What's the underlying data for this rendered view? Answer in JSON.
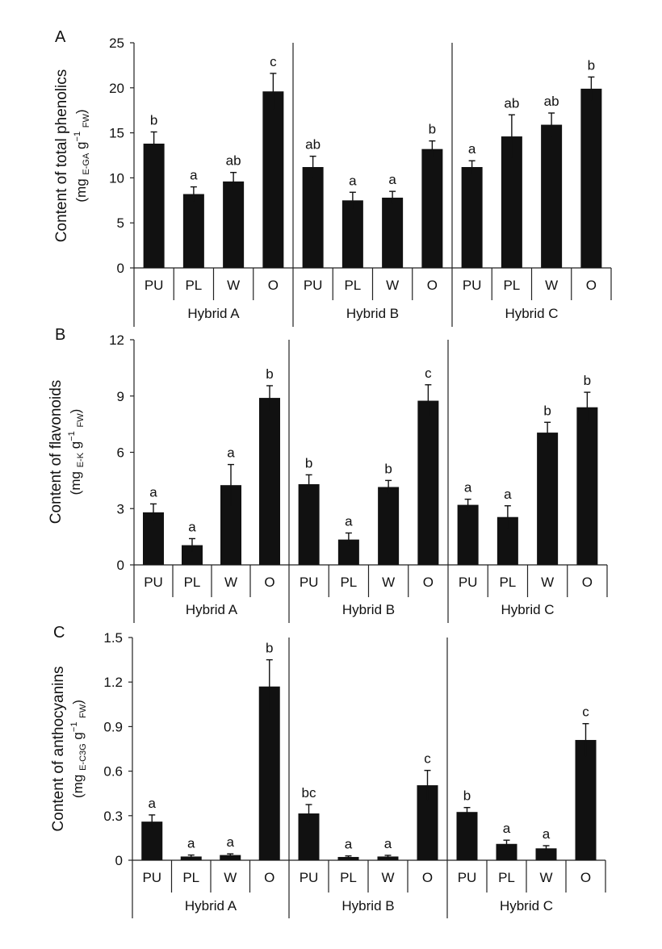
{
  "figure_colors": {
    "bar": "#111111",
    "axis": "#222222",
    "background": "#ffffff"
  },
  "chart_data": [
    {
      "panel_label": "A",
      "type": "bar",
      "ylabel": "Content of total phenolics",
      "ylabel_unit_main": "mg",
      "ylabel_unit_sub1": "E-GA",
      "ylabel_unit_g": "g",
      "ylabel_unit_sup": "−1",
      "ylabel_unit_sub2": "FW",
      "ylim": [
        0,
        25
      ],
      "yticks": [
        0,
        5,
        10,
        15,
        20,
        25
      ],
      "ytick_labels": [
        "0",
        "5",
        "10",
        "15",
        "20",
        "25"
      ],
      "groups": [
        "Hybrid A",
        "Hybrid B",
        "Hybrid C"
      ],
      "categories": [
        "PU",
        "PL",
        "W",
        "O"
      ],
      "values": [
        [
          13.8,
          8.2,
          9.6,
          19.6
        ],
        [
          11.2,
          7.5,
          7.8,
          13.2
        ],
        [
          11.2,
          14.6,
          15.9,
          19.9
        ]
      ],
      "errors": [
        [
          1.3,
          0.8,
          1.0,
          2.0
        ],
        [
          1.2,
          0.9,
          0.7,
          0.9
        ],
        [
          0.7,
          2.4,
          1.3,
          1.3
        ]
      ],
      "letters": [
        [
          "b",
          "a",
          "ab",
          "c"
        ],
        [
          "ab",
          "a",
          "a",
          "b"
        ],
        [
          "a",
          "ab",
          "ab",
          "b"
        ]
      ],
      "grid": false
    },
    {
      "panel_label": "B",
      "type": "bar",
      "ylabel": "Content of flavonoids",
      "ylabel_unit_main": "mg",
      "ylabel_unit_sub1": "E-K",
      "ylabel_unit_g": "g",
      "ylabel_unit_sup": "−1",
      "ylabel_unit_sub2": "FW",
      "ylim": [
        0,
        12
      ],
      "yticks": [
        0,
        3,
        6,
        9,
        12
      ],
      "ytick_labels": [
        "0",
        "3",
        "6",
        "9",
        "12"
      ],
      "groups": [
        "Hybrid A",
        "Hybrid B",
        "Hybrid C"
      ],
      "categories": [
        "PU",
        "PL",
        "W",
        "O"
      ],
      "values": [
        [
          2.8,
          1.05,
          4.25,
          8.9
        ],
        [
          4.3,
          1.35,
          4.15,
          8.75
        ],
        [
          3.2,
          2.55,
          7.05,
          8.4
        ]
      ],
      "errors": [
        [
          0.45,
          0.35,
          1.1,
          0.65
        ],
        [
          0.5,
          0.35,
          0.35,
          0.85
        ],
        [
          0.3,
          0.6,
          0.55,
          0.8
        ]
      ],
      "letters": [
        [
          "a",
          "a",
          "a",
          "b"
        ],
        [
          "b",
          "a",
          "b",
          "c"
        ],
        [
          "a",
          "a",
          "b",
          "b"
        ]
      ],
      "grid": false
    },
    {
      "panel_label": "C",
      "type": "bar",
      "ylabel": "Content of anthocyanins",
      "ylabel_unit_main": "mg",
      "ylabel_unit_sub1": "E-C3G",
      "ylabel_unit_g": "g",
      "ylabel_unit_sup": "−1",
      "ylabel_unit_sub2": "FW",
      "ylim": [
        0,
        1.5
      ],
      "yticks": [
        0,
        0.3,
        0.6,
        0.9,
        1.2,
        1.5
      ],
      "ytick_labels": [
        "0",
        "0.3",
        "0.6",
        "0.9",
        "1.2",
        "1.5"
      ],
      "groups": [
        "Hybrid A",
        "Hybrid B",
        "Hybrid C"
      ],
      "categories": [
        "PU",
        "PL",
        "W",
        "O"
      ],
      "values": [
        [
          0.26,
          0.025,
          0.035,
          1.17
        ],
        [
          0.315,
          0.022,
          0.025,
          0.505
        ],
        [
          0.325,
          0.11,
          0.08,
          0.81
        ]
      ],
      "errors": [
        [
          0.045,
          0.01,
          0.008,
          0.18
        ],
        [
          0.06,
          0.007,
          0.008,
          0.1
        ],
        [
          0.03,
          0.025,
          0.018,
          0.11
        ]
      ],
      "letters": [
        [
          "a",
          "a",
          "a",
          "b"
        ],
        [
          "bc",
          "a",
          "a",
          "c"
        ],
        [
          "b",
          "a",
          "a",
          "c"
        ]
      ],
      "grid": false
    }
  ]
}
